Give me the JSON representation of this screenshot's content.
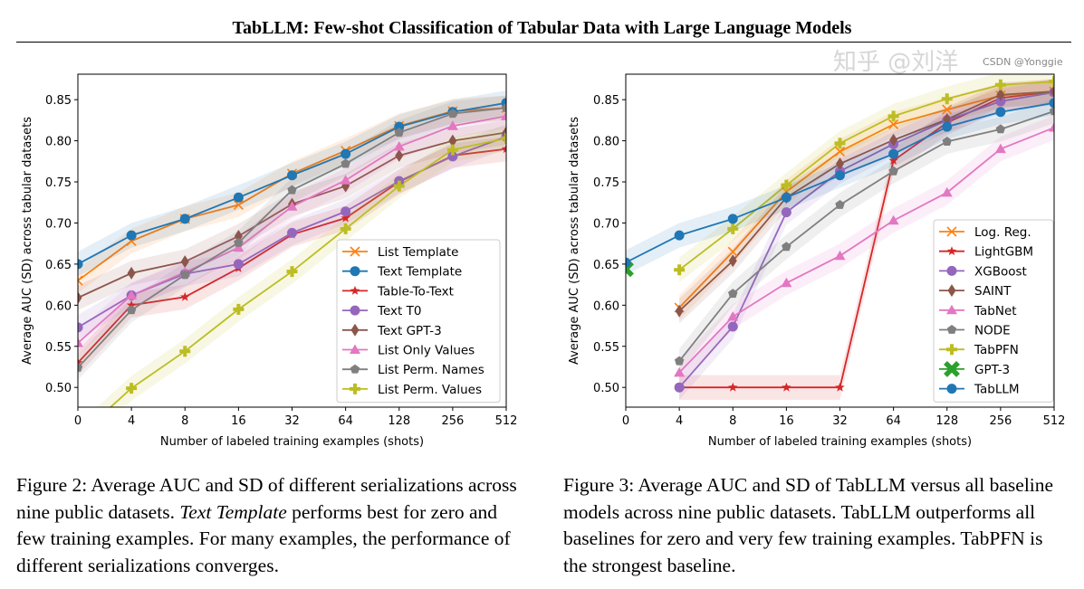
{
  "header": {
    "title": "TabLLM: Few-shot Classification of Tabular Data with Large Language Models"
  },
  "captions": [
    {
      "label": "Figure 2:",
      "before": " Average AUC and SD of different serializations across nine public datasets. ",
      "italic": "Text Template",
      "after": " performs best for zero and few training examples. For many examples, the performance of different serializations converges."
    },
    {
      "label": "Figure 3:",
      "before": " Average AUC and SD of TabLLM versus all baseline models across nine public datasets. TabLLM outperforms all baselines for zero and very few training examples. TabPFN is the strongest baseline.",
      "italic": "",
      "after": ""
    }
  ],
  "watermarks": {
    "zhihu": "知乎 @刘洋",
    "csdn": "CSDN @Yonggie"
  },
  "chart_data": [
    {
      "type": "line",
      "xlabel": "Number of labeled training examples (shots)",
      "ylabel": "Average AUC (SD) across tabular datasets",
      "x": [
        "0",
        "4",
        "8",
        "16",
        "32",
        "64",
        "128",
        "256",
        "512"
      ],
      "x_scale": "categorical (log2-like)",
      "yticks": [
        "0.50",
        "0.55",
        "0.60",
        "0.65",
        "0.70",
        "0.75",
        "0.80",
        "0.85"
      ],
      "ylim": [
        0.476,
        0.881
      ],
      "legend": "lower-right",
      "grid": false,
      "series": [
        {
          "name": "List Template",
          "color": "#ff7f0e",
          "marker": "x",
          "values": [
            0.63,
            0.678,
            0.705,
            0.722,
            0.76,
            0.788,
            0.818,
            0.836,
            0.84
          ]
        },
        {
          "name": "Text Template",
          "color": "#1f77b4",
          "marker": "circle",
          "values": [
            0.65,
            0.685,
            0.705,
            0.731,
            0.758,
            0.784,
            0.817,
            0.835,
            0.846
          ]
        },
        {
          "name": "Table-To-Text",
          "color": "#d62728",
          "marker": "star",
          "values": [
            0.53,
            0.6,
            0.61,
            0.645,
            0.686,
            0.706,
            0.75,
            0.782,
            0.79
          ]
        },
        {
          "name": "Text T0",
          "color": "#9467bd",
          "marker": "circle",
          "values": [
            0.573,
            0.612,
            0.638,
            0.65,
            0.688,
            0.714,
            0.751,
            0.781,
            0.805
          ]
        },
        {
          "name": "Text GPT-3",
          "color": "#8c564b",
          "marker": "diamond",
          "values": [
            0.609,
            0.639,
            0.653,
            0.684,
            0.723,
            0.745,
            0.782,
            0.8,
            0.81
          ]
        },
        {
          "name": "List Only Values",
          "color": "#e377c2",
          "marker": "triangle",
          "values": [
            0.554,
            0.612,
            0.64,
            0.67,
            0.72,
            0.752,
            0.793,
            0.818,
            0.83
          ]
        },
        {
          "name": "List Perm. Names",
          "color": "#7f7f7f",
          "marker": "pentagon",
          "values": [
            0.524,
            0.594,
            0.637,
            0.676,
            0.74,
            0.772,
            0.81,
            0.833,
            0.84
          ]
        },
        {
          "name": "List Perm. Values",
          "color": "#bcbd22",
          "marker": "plus",
          "values": [
            0.44,
            0.499,
            0.544,
            0.595,
            0.641,
            0.693,
            0.745,
            0.789,
            0.803
          ]
        }
      ]
    },
    {
      "type": "line",
      "xlabel": "Number of labeled training examples (shots)",
      "ylabel": "Average AUC (SD) across tabular datasets",
      "x": [
        "0",
        "4",
        "8",
        "16",
        "32",
        "64",
        "128",
        "256",
        "512"
      ],
      "x_scale": "categorical (log2-like)",
      "yticks": [
        "0.50",
        "0.55",
        "0.60",
        "0.65",
        "0.70",
        "0.75",
        "0.80",
        "0.85"
      ],
      "ylim": [
        0.476,
        0.881
      ],
      "legend": "lower-right",
      "grid": false,
      "series": [
        {
          "name": "Log. Reg.",
          "color": "#ff7f0e",
          "marker": "x",
          "values": [
            null,
            0.597,
            0.665,
            0.738,
            0.787,
            0.82,
            0.838,
            0.855,
            0.86
          ]
        },
        {
          "name": "LightGBM",
          "color": "#d62728",
          "marker": "star",
          "values": [
            null,
            0.5,
            0.5,
            0.5,
            0.5,
            0.776,
            0.822,
            0.852,
            0.86
          ]
        },
        {
          "name": "XGBoost",
          "color": "#9467bd",
          "marker": "circle",
          "values": [
            null,
            0.5,
            0.574,
            0.713,
            0.763,
            0.796,
            0.825,
            0.848,
            0.859
          ]
        },
        {
          "name": "SAINT",
          "color": "#8c564b",
          "marker": "diamond",
          "values": [
            null,
            0.593,
            0.654,
            0.731,
            0.772,
            0.801,
            0.826,
            0.856,
            0.86
          ]
        },
        {
          "name": "TabNet",
          "color": "#e377c2",
          "marker": "triangle",
          "values": [
            null,
            0.518,
            0.586,
            0.627,
            0.66,
            0.703,
            0.737,
            0.79,
            0.816
          ]
        },
        {
          "name": "NODE",
          "color": "#7f7f7f",
          "marker": "pentagon",
          "values": [
            null,
            0.532,
            0.614,
            0.671,
            0.722,
            0.763,
            0.799,
            0.814,
            0.836
          ]
        },
        {
          "name": "TabPFN",
          "color": "#bcbd22",
          "marker": "plus",
          "values": [
            null,
            0.643,
            0.693,
            0.746,
            0.797,
            0.83,
            0.851,
            0.868,
            0.872
          ]
        },
        {
          "name": "GPT-3",
          "color": "#2ca02c",
          "marker": "bigx",
          "values": [
            0.644,
            null,
            null,
            null,
            null,
            null,
            null,
            null,
            null
          ]
        },
        {
          "name": "TabLLM",
          "color": "#1f77b4",
          "marker": "circle",
          "values": [
            0.652,
            0.685,
            0.705,
            0.731,
            0.758,
            0.784,
            0.817,
            0.835,
            0.846
          ]
        }
      ]
    }
  ]
}
